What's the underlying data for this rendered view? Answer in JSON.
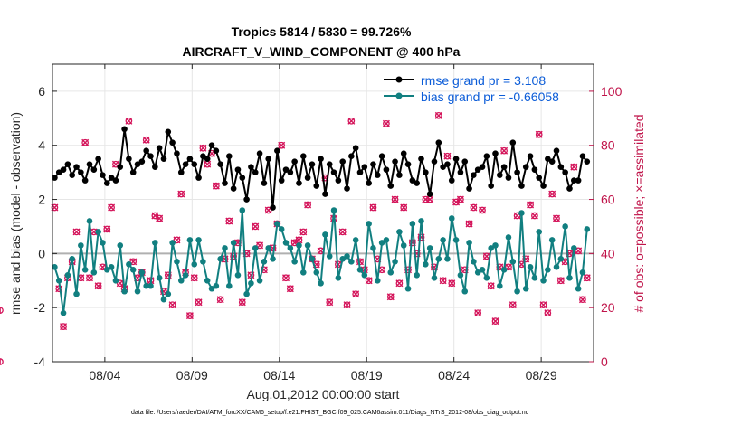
{
  "chart_data": {
    "type": "line",
    "title_line1": "Tropics 5814 / 5830 = 99.726%",
    "title_line2": "AIRCRAFT_V_WIND_COMPONENT @ 400 hPa",
    "ylabel": "rmse and bias (model - observation)",
    "ylabel_right": "# of obs: o=possible; ×=assimilated",
    "xlabel": "Aug.01,2012 00:00:00 start",
    "footnote": "data file: /Users/raeder/DAI/ATM_forcXX/CAM6_setup/f.e21.FHIST_BGC.f09_025.CAM6assim.011/Diags_NTrS_2012-08/obs_diag_output.nc",
    "xlim": [
      1.0,
      32.0
    ],
    "ylim": [
      -4,
      7
    ],
    "ylim_right": [
      0,
      110
    ],
    "xticks": [
      {
        "value": 4,
        "label": "08/04"
      },
      {
        "value": 9,
        "label": "08/09"
      },
      {
        "value": 14,
        "label": "08/14"
      },
      {
        "value": 19,
        "label": "08/19"
      },
      {
        "value": 24,
        "label": "08/24"
      },
      {
        "value": 29,
        "label": "08/29"
      }
    ],
    "yticks": [
      {
        "value": -4,
        "label": "-4"
      },
      {
        "value": -2,
        "label": "-2"
      },
      {
        "value": 0,
        "label": "0"
      },
      {
        "value": 2,
        "label": "2"
      },
      {
        "value": 4,
        "label": "4"
      },
      {
        "value": 6,
        "label": "6"
      }
    ],
    "yticks_right": [
      {
        "value": 0,
        "label": "0"
      },
      {
        "value": 20,
        "label": "20"
      },
      {
        "value": 40,
        "label": "40"
      },
      {
        "value": 60,
        "label": "60"
      },
      {
        "value": 80,
        "label": "80"
      },
      {
        "value": 100,
        "label": "100"
      }
    ],
    "grid": true,
    "legend_position": "top-right",
    "x": [
      1.125,
      1.375,
      1.625,
      1.875,
      2.125,
      2.375,
      2.625,
      2.875,
      3.125,
      3.375,
      3.625,
      3.875,
      4.125,
      4.375,
      4.625,
      4.875,
      5.125,
      5.375,
      5.625,
      5.875,
      6.125,
      6.375,
      6.625,
      6.875,
      7.125,
      7.375,
      7.625,
      7.875,
      8.125,
      8.375,
      8.625,
      8.875,
      9.125,
      9.375,
      9.625,
      9.875,
      10.125,
      10.375,
      10.625,
      10.875,
      11.125,
      11.375,
      11.625,
      11.875,
      12.125,
      12.375,
      12.625,
      12.875,
      13.125,
      13.375,
      13.625,
      13.875,
      14.125,
      14.375,
      14.625,
      14.875,
      15.125,
      15.375,
      15.625,
      15.875,
      16.125,
      16.375,
      16.625,
      16.875,
      17.125,
      17.375,
      17.625,
      17.875,
      18.125,
      18.375,
      18.625,
      18.875,
      19.125,
      19.375,
      19.625,
      19.875,
      20.125,
      20.375,
      20.625,
      20.875,
      21.125,
      21.375,
      21.625,
      21.875,
      22.125,
      22.375,
      22.625,
      22.875,
      23.125,
      23.375,
      23.625,
      23.875,
      24.125,
      24.375,
      24.625,
      24.875,
      25.125,
      25.375,
      25.625,
      25.875,
      26.125,
      26.375,
      26.625,
      26.875,
      27.125,
      27.375,
      27.625,
      27.875,
      28.125,
      28.375,
      28.625,
      28.875,
      29.125,
      29.375,
      29.625,
      29.875,
      30.125,
      30.375,
      30.625,
      30.875,
      31.125,
      31.375,
      31.625
    ],
    "series": [
      {
        "name": "rmse grand pr = 3.108",
        "axis": "left",
        "color": "#000000",
        "marker": "circle",
        "values": [
          2.8,
          3.0,
          3.1,
          3.3,
          2.9,
          3.2,
          3.0,
          2.7,
          3.3,
          3.1,
          3.5,
          2.9,
          2.6,
          2.8,
          2.7,
          3.2,
          4.6,
          3.5,
          3.0,
          3.3,
          3.4,
          3.8,
          3.6,
          3.2,
          3.9,
          3.5,
          4.5,
          4.1,
          3.7,
          3.0,
          3.3,
          3.5,
          3.3,
          2.8,
          3.6,
          3.5,
          4.0,
          3.8,
          3.3,
          2.6,
          3.6,
          2.4,
          3.1,
          2.8,
          2.0,
          3.2,
          3.0,
          3.7,
          2.6,
          3.5,
          1.7,
          3.8,
          2.7,
          3.1,
          3.0,
          3.4,
          2.6,
          3.6,
          2.8,
          3.3,
          2.5,
          3.5,
          2.2,
          3.3,
          3.0,
          2.7,
          3.4,
          2.4,
          3.6,
          3.9,
          3.0,
          3.2,
          2.6,
          3.3,
          2.9,
          3.6,
          3.1,
          2.5,
          3.4,
          2.9,
          3.7,
          3.3,
          2.7,
          2.6,
          3.5,
          3.0,
          2.2,
          3.4,
          4.1,
          3.2,
          3.3,
          2.7,
          3.5,
          3.0,
          3.4,
          2.4,
          2.9,
          3.1,
          3.2,
          3.6,
          2.5,
          3.7,
          2.9,
          3.2,
          2.8,
          4.1,
          3.0,
          2.5,
          3.2,
          3.6,
          3.1,
          2.8,
          2.5,
          3.5,
          3.4,
          3.8,
          3.2,
          3.0,
          2.4,
          2.7,
          2.7,
          3.6,
          3.4
        ]
      },
      {
        "name": "bias grand pr = -0.66058",
        "axis": "left",
        "color": "#117f80",
        "marker": "circle",
        "values": [
          -0.5,
          -1.0,
          -2.2,
          -0.8,
          -0.2,
          -1.5,
          0.3,
          -0.6,
          1.2,
          -0.7,
          0.8,
          0.4,
          -0.6,
          -0.5,
          -1.0,
          0.3,
          -1.4,
          -0.4,
          -0.6,
          -1.4,
          -0.7,
          -1.2,
          -1.2,
          0.4,
          -0.9,
          -1.7,
          -1.5,
          0.4,
          -0.3,
          -1.0,
          -0.8,
          0.5,
          -0.4,
          0.5,
          -0.3,
          -1.0,
          -1.3,
          -1.2,
          -0.2,
          0.2,
          -1.2,
          0.4,
          -0.8,
          1.6,
          -1.5,
          -1.1,
          0.2,
          -1.0,
          -0.3,
          0.2,
          -0.2,
          1.1,
          0.9,
          0.4,
          0.2,
          -0.3,
          0.3,
          -0.7,
          0.3,
          -0.2,
          -0.7,
          -1.1,
          0.7,
          -0.1,
          1.6,
          -0.9,
          -0.2,
          -0.1,
          -0.3,
          0.5,
          -0.6,
          -0.8,
          1.1,
          0.2,
          -1.0,
          0.4,
          0.5,
          -0.7,
          -0.3,
          0.8,
          0.3,
          -1.3,
          1.1,
          -0.8,
          1.2,
          -0.4,
          0.2,
          -0.9,
          -0.2,
          0.5,
          -0.2,
          1.3,
          0.5,
          -0.8,
          -1.4,
          0.4,
          -0.3,
          -0.7,
          -0.6,
          -0.9,
          0.2,
          0.3,
          -1.2,
          -0.6,
          0.6,
          -0.3,
          -1.4,
          1.5,
          -1.3,
          -0.5,
          -0.9,
          0.8,
          -1.0,
          -0.6,
          0.5,
          -0.5,
          -0.2,
          1.0,
          -0.9,
          0.2,
          -1.3,
          -0.7,
          0.9
        ]
      }
    ],
    "scatter_right": {
      "name": "# of obs (o=possible; x=assimilated)",
      "axis": "right",
      "color": "#d4145a",
      "values": [
        57,
        27,
        13,
        31,
        37,
        48,
        31,
        81,
        31,
        48,
        28,
        35,
        49,
        57,
        73,
        29,
        27,
        89,
        37,
        31,
        33,
        82,
        30,
        54,
        53,
        26,
        32,
        21,
        45,
        62,
        33,
        17,
        31,
        22,
        79,
        73,
        77,
        65,
        23,
        38,
        52,
        39,
        44,
        22,
        40,
        32,
        50,
        43,
        34,
        56,
        42,
        51,
        80,
        31,
        27,
        44,
        45,
        48,
        58,
        38,
        36,
        41,
        68,
        22,
        53,
        36,
        48,
        21,
        89,
        25,
        37,
        34,
        30,
        57,
        38,
        34,
        88,
        24,
        60,
        29,
        57,
        34,
        44,
        40,
        46,
        60,
        60,
        35,
        91,
        30,
        76,
        29,
        59,
        60,
        34,
        51,
        57,
        18,
        56,
        39,
        28,
        15,
        35,
        78,
        35,
        21,
        54,
        36,
        38,
        58,
        54,
        84,
        21,
        18,
        62,
        53,
        30,
        37,
        40,
        72,
        41,
        23,
        31,
        19,
        0
      ]
    },
    "legend": [
      {
        "label": "rmse grand pr = 3.108",
        "color": "#000000"
      },
      {
        "label": "bias grand pr = -0.66058",
        "color": "#117f80"
      }
    ]
  }
}
